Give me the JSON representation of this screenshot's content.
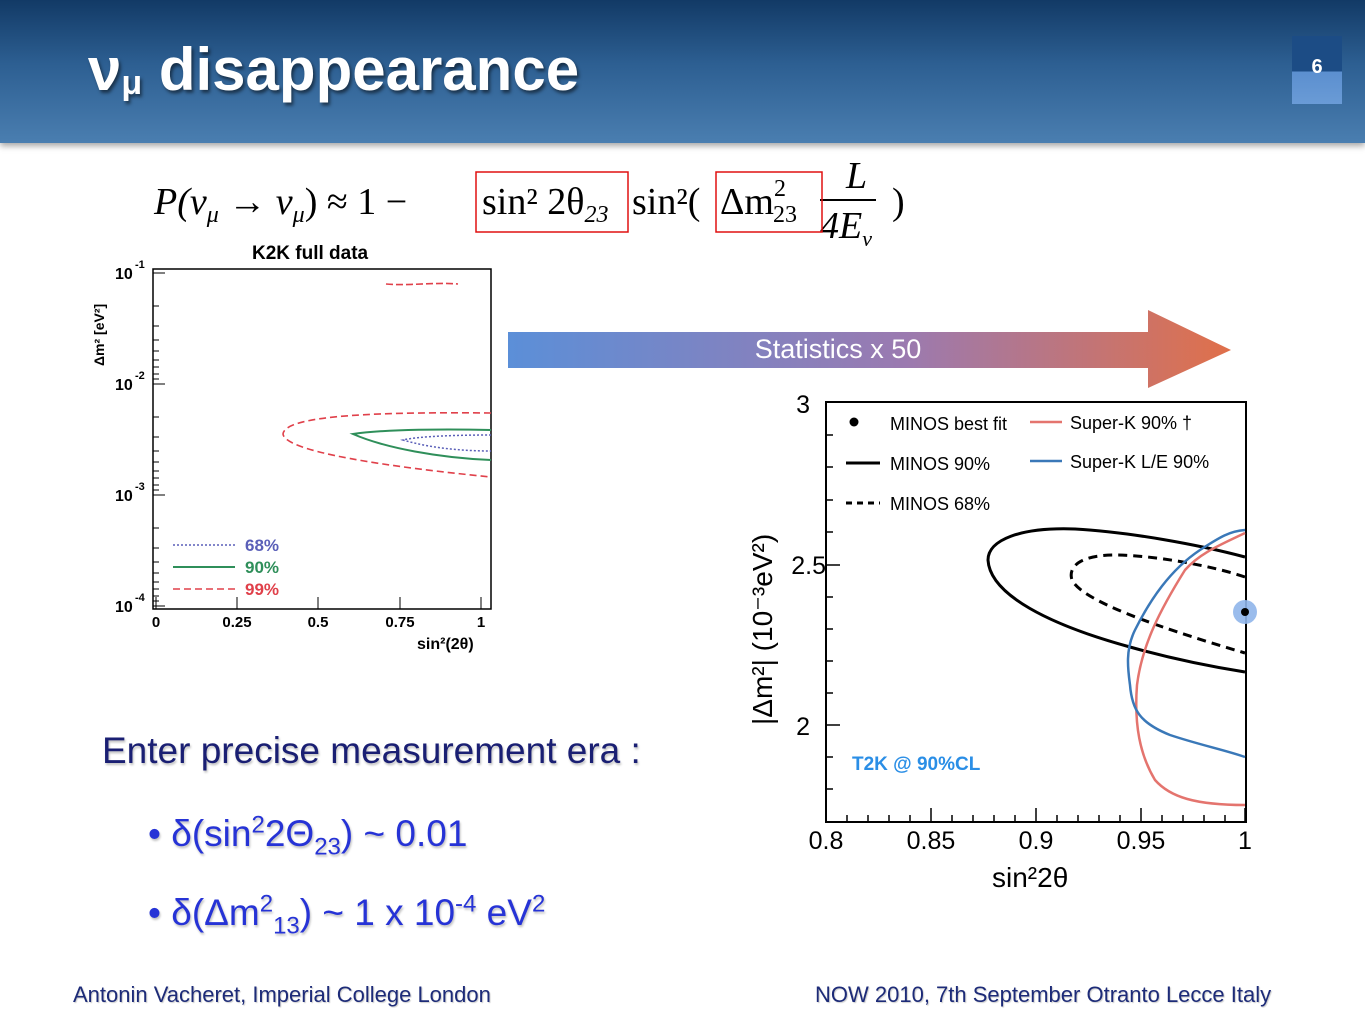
{
  "slide": {
    "title_main": "ν",
    "title_sub": "μ",
    "title_rest": " disappearance",
    "page_number": "6"
  },
  "formula": {
    "lhs": "P(ν",
    "lhs_sub": "μ",
    "arrow": " → ν",
    "arrow_sub": "μ",
    "approx": ") ≈ 1 −",
    "term1": "sin² 2θ",
    "term1_sub": "23",
    "sin2": "sin²(",
    "term2": "Δm",
    "term2_sup": "2",
    "term2_sub": "23",
    "frac_num": "L",
    "frac_den": "4E",
    "frac_den_sub": "ν",
    "close": ")"
  },
  "k2k_plot": {
    "title": "K2K full data",
    "ylabel": "Δm² [eV²]",
    "xlabel": "sin²(2θ)",
    "xticks": [
      "0",
      "0.25",
      "0.5",
      "0.75",
      "1"
    ],
    "yticks": [
      "10",
      "10",
      "10",
      "10"
    ],
    "ytick_exps": [
      "-1",
      "-2",
      "-3",
      "-4"
    ],
    "legend": [
      "68%",
      "90%",
      "99%"
    ]
  },
  "arrow": {
    "label": "Statistics x 50"
  },
  "minos_plot": {
    "ylabel": "|Δm²| (10⁻³eV²)",
    "xlabel": "sin²2θ",
    "xticks": [
      "0.8",
      "0.85",
      "0.9",
      "0.95",
      "1"
    ],
    "yticks": [
      "3",
      "2.5",
      "2"
    ],
    "legend": {
      "best_fit": "MINOS best fit",
      "minos90": "MINOS 90%",
      "minos68": "MINOS 68%",
      "superk90": "Super-K 90% †",
      "superk_le": "Super-K L/E 90%"
    },
    "annotation": "T2K @ 90%CL"
  },
  "text": {
    "enter": "Enter precise measurement era :",
    "b1_pre": "δ(sin",
    "b1_sup": "2",
    "b1_mid": "2Θ",
    "b1_sub": "23",
    "b1_post": ") ~ 0.01",
    "b2_pre": "δ(Δm",
    "b2_sup": "2",
    "b2_sub": "13",
    "b2_mid": ") ~  1 x 10",
    "b2_exp": "-4",
    "b2_unit": " eV",
    "b2_unit_sup": "2",
    "bullet_char": "•"
  },
  "footer": {
    "left": "Antonin Vacheret, Imperial College London",
    "right": "NOW 2010, 7th September Otranto Lecce Italy"
  },
  "colors": {
    "header_dark": "#123a66",
    "header_light": "#4a7eb0",
    "enter_text": "#1a1f73",
    "bullet_text": "#2633d6",
    "k2k_68": "#5a5fb8",
    "k2k_90": "#2f8f5a",
    "k2k_99": "#e0404a",
    "superk": "#e4746e",
    "superk_le": "#3a78b8",
    "t2k": "#2a8ee6"
  }
}
